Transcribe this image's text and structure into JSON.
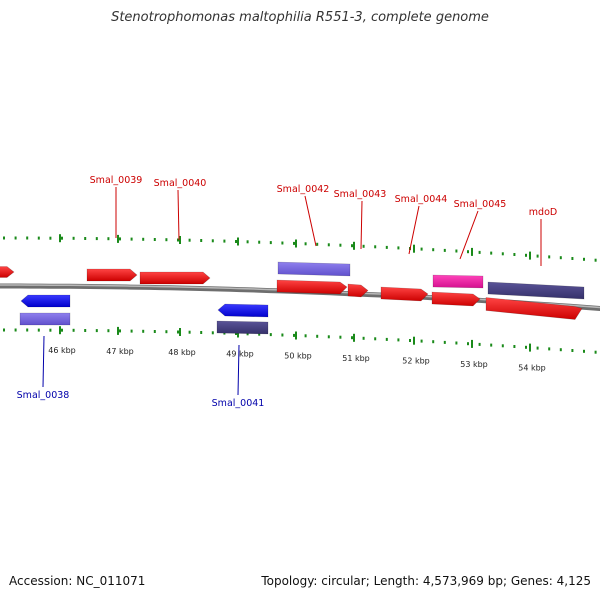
{
  "title": "Stenotrophomonas maltophilia R551-3, complete genome",
  "footer": {
    "accession_label": "Accession:",
    "accession": "NC_011071",
    "topology_label": "Topology:",
    "topology": "circular",
    "length_label": "Length:",
    "length": "4,573,969 bp",
    "genes_label": "Genes:",
    "genes": "4,125"
  },
  "scale": {
    "unit": "kbp",
    "labels": [
      "46 kbp",
      "47 kbp",
      "48 kbp",
      "49 kbp",
      "50 kbp",
      "51 kbp",
      "52 kbp",
      "53 kbp",
      "54 kbp"
    ]
  },
  "genes_above": [
    {
      "label": "Smal_0039"
    },
    {
      "label": "Smal_0040"
    },
    {
      "label": "Smal_0042"
    },
    {
      "label": "Smal_0043"
    },
    {
      "label": "Smal_0044"
    },
    {
      "label": "Smal_0045"
    },
    {
      "label": "mdoD"
    }
  ],
  "genes_below": [
    {
      "label": "Smal_0038"
    },
    {
      "label": "Smal_0041"
    }
  ],
  "colors": {
    "forward_label": "#cc0000",
    "reverse_label": "#0000aa",
    "red_feature": "#ee1111",
    "blue_feature": "#1a1aee",
    "lavender_feature": "#7766dd",
    "navy_feature": "#443f80",
    "magenta_feature": "#ee22aa",
    "tick": "#1a8a1a",
    "backbone": "#888888"
  }
}
